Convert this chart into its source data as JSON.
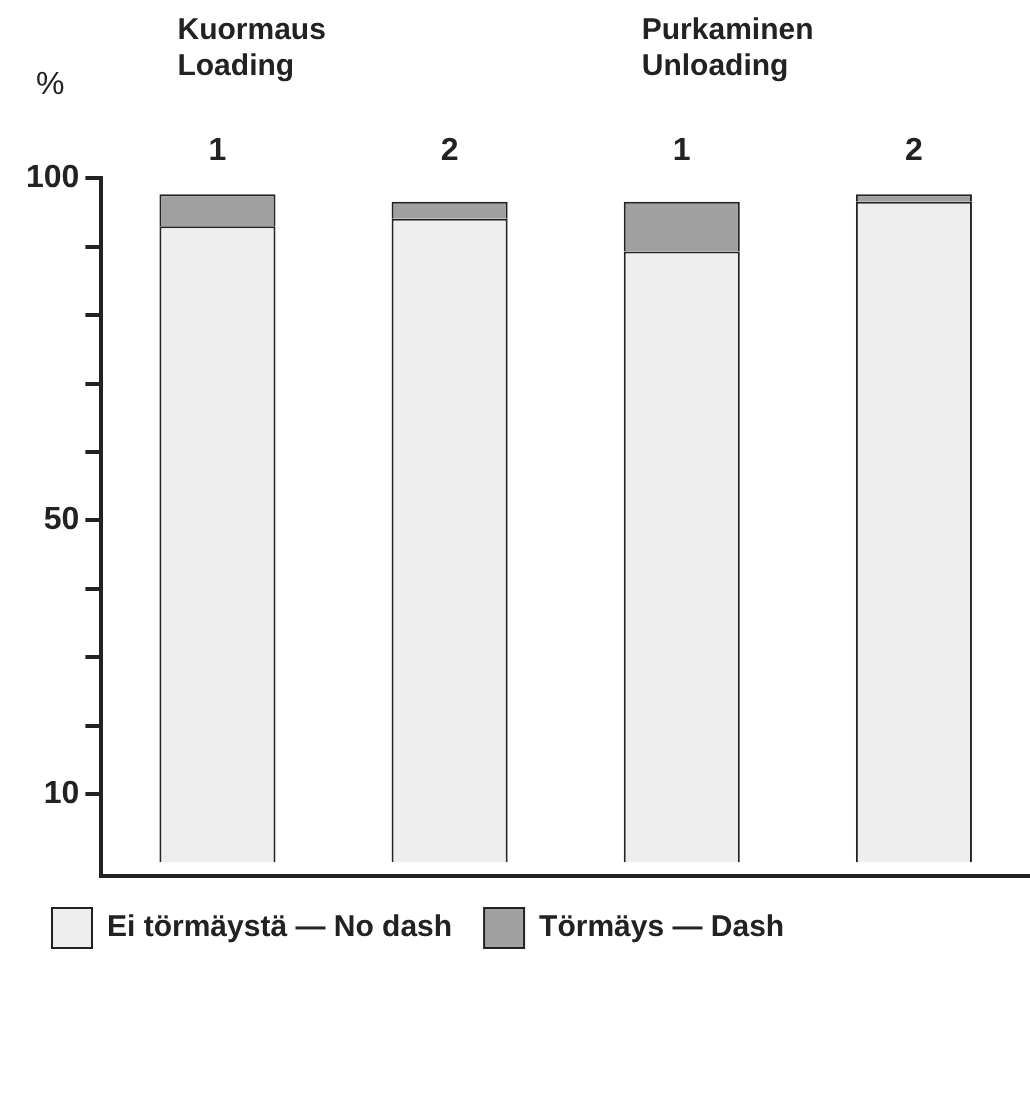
{
  "chart_data": {
    "type": "bar",
    "stacked": true,
    "ylabel": "%",
    "categories": [
      "1",
      "2",
      "1",
      "2"
    ],
    "series": [
      {
        "name": "Ei törmäystä — No dash",
        "color": "#eeeeee",
        "values": [
          93.0,
          94.1,
          89.3,
          96.6
        ]
      },
      {
        "name": "Törmäys — Dash",
        "color": "#a0a0a0",
        "values": [
          4.7,
          2.5,
          7.3,
          1.1
        ]
      }
    ],
    "ylim": [
      -2,
      100
    ],
    "yticks": [
      {
        "value": 10,
        "label": "10"
      },
      {
        "value": 20,
        "label": null
      },
      {
        "value": 30,
        "label": null
      },
      {
        "value": 40,
        "label": null
      },
      {
        "value": 50,
        "label": "50"
      },
      {
        "value": 60,
        "label": null
      },
      {
        "value": 70,
        "label": null
      },
      {
        "value": 80,
        "label": null
      },
      {
        "value": 90,
        "label": null
      },
      {
        "value": 100,
        "label": "100"
      }
    ],
    "annotations": [
      "Kuormaus\nLoading",
      "Purkaminen\nUnloading"
    ],
    "grid": false,
    "legend": "bottom left"
  }
}
